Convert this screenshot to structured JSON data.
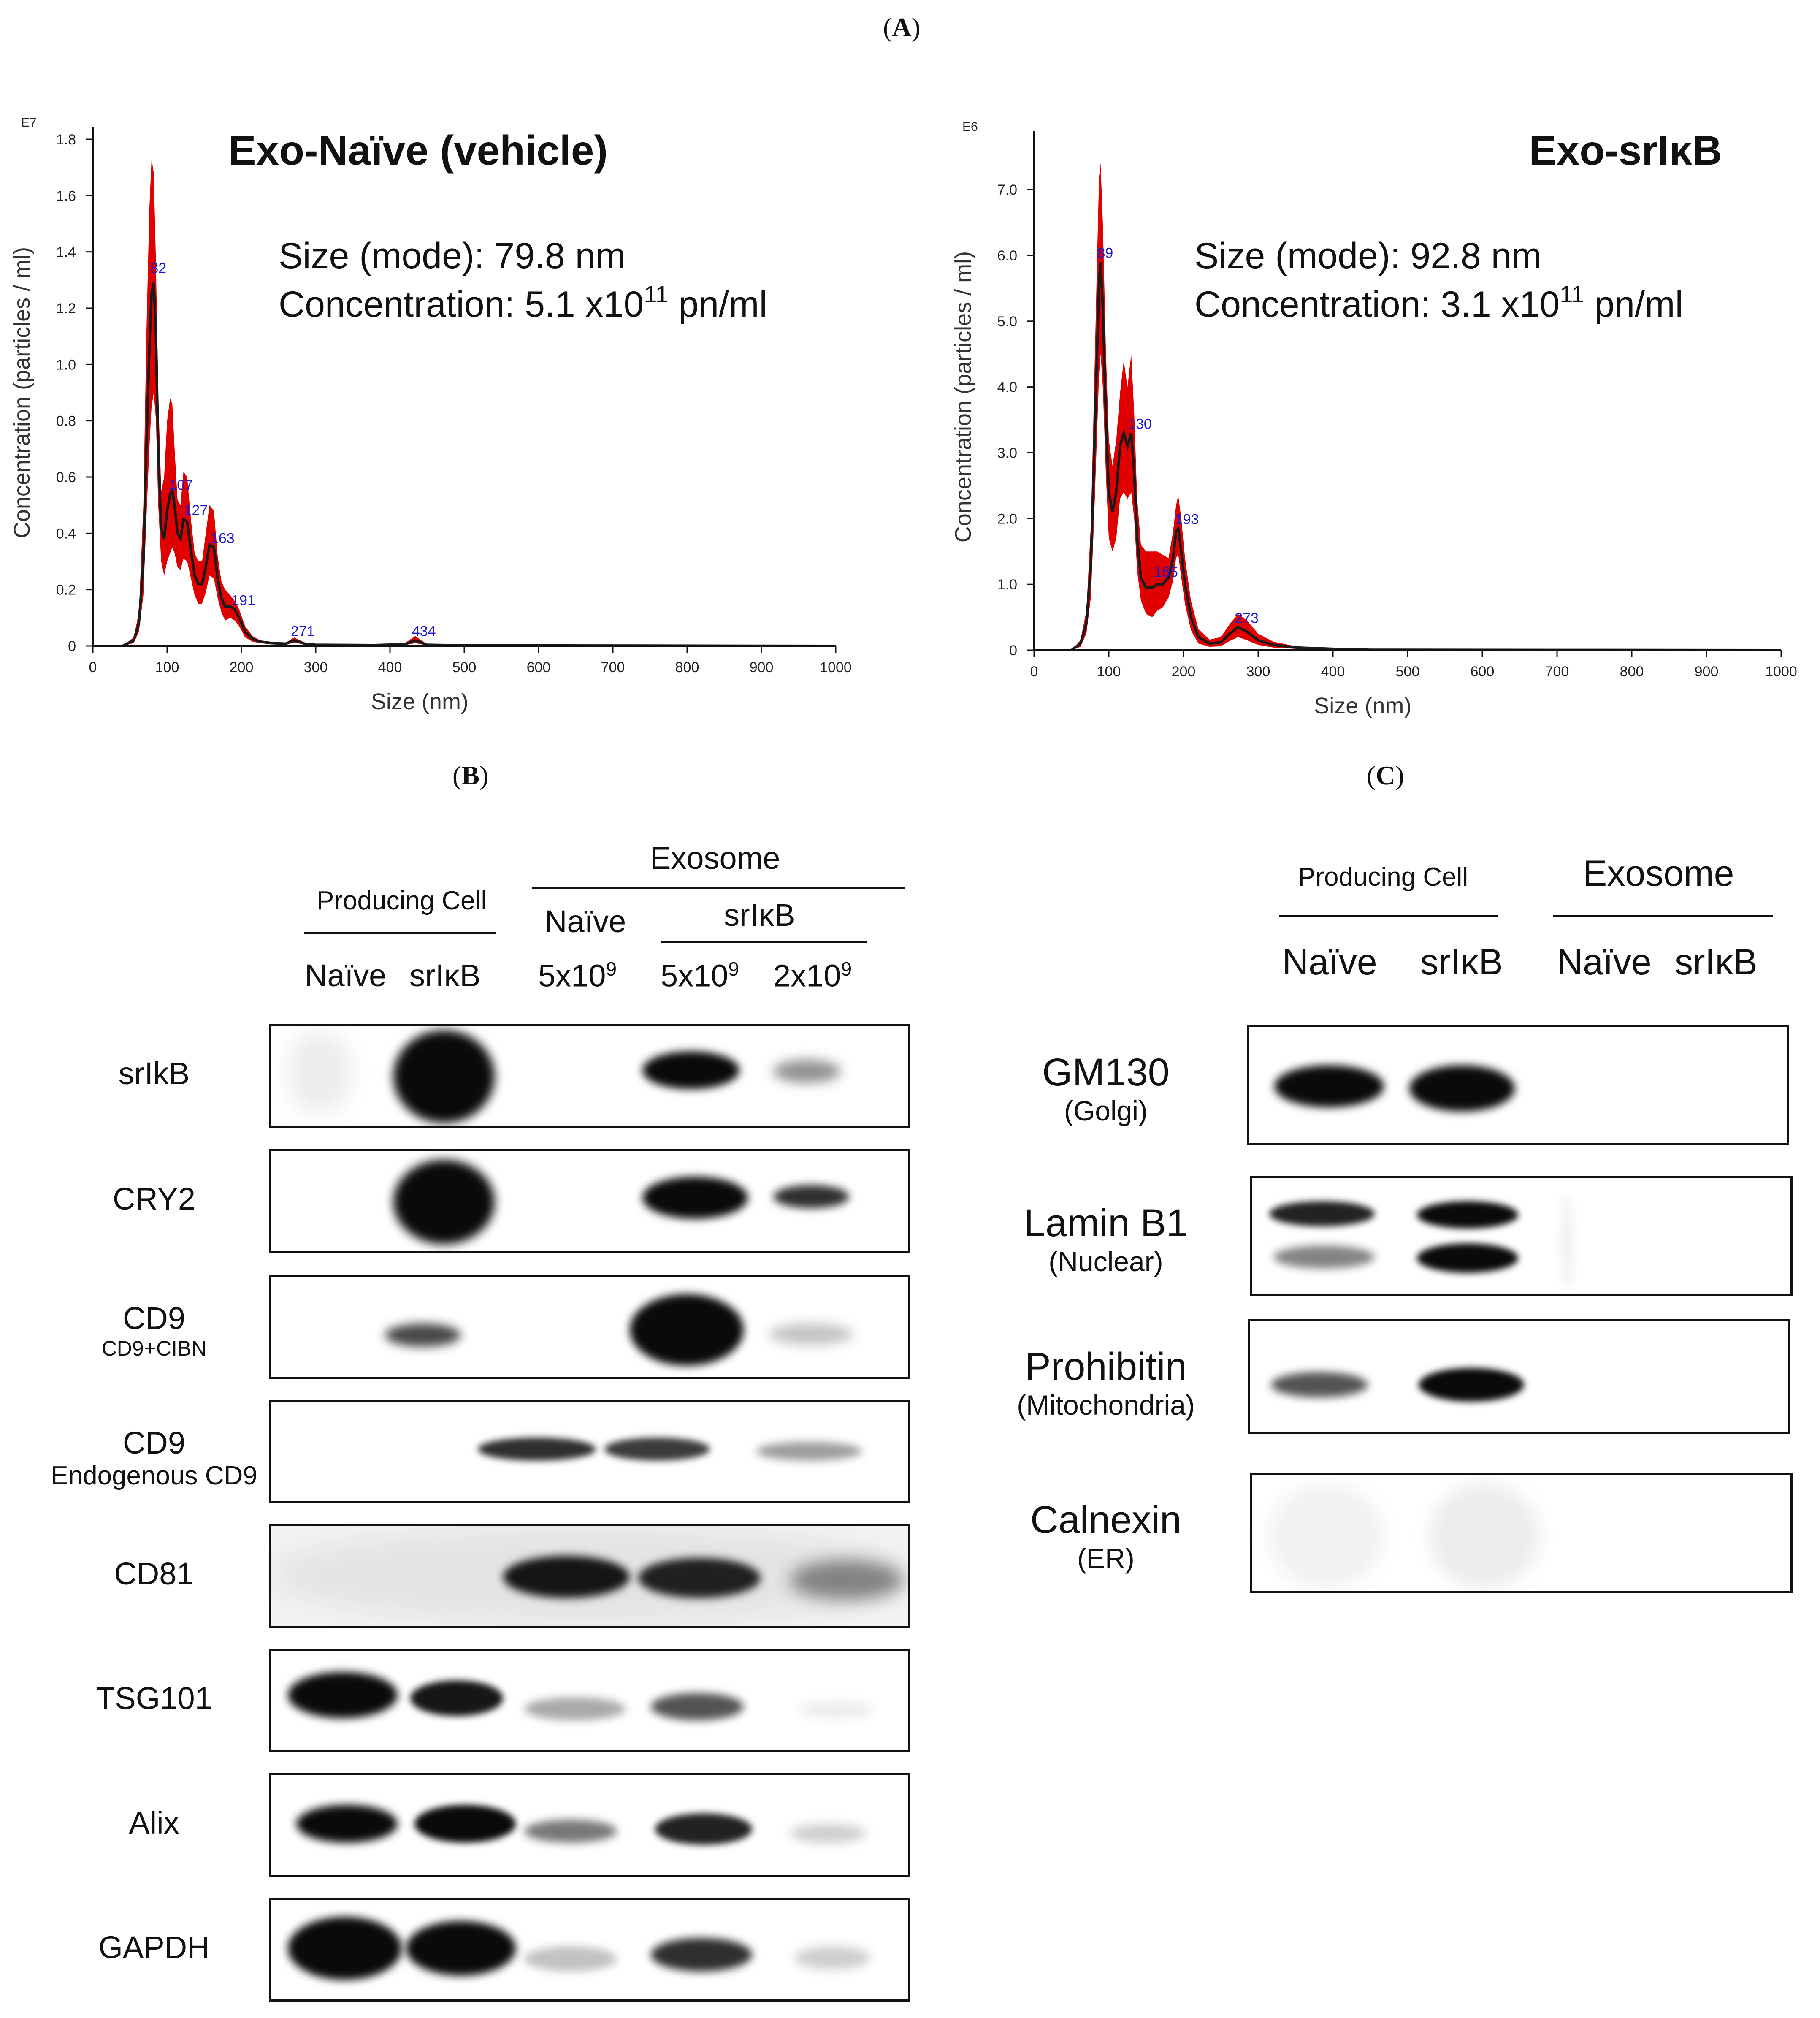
{
  "panels": {
    "a": "A",
    "b": "B",
    "c": "C"
  },
  "panel_a": {
    "chart_data": [
      {
        "type": "area",
        "title": "Exo-Naïve (vehicle)",
        "annotation_lines": [
          "Size (mode): 79.8 nm",
          "Concentration: 5.1 x10",
          "11",
          " pn/ml"
        ],
        "exponent_label": "E7",
        "xlabel": "Size (nm)",
        "ylabel": "Concentration (particles / ml)",
        "xlim": [
          0,
          1000
        ],
        "ylim": [
          0,
          1.8
        ],
        "xticks": [
          0,
          100,
          200,
          300,
          400,
          500,
          600,
          700,
          800,
          900,
          1000
        ],
        "yticks": [
          "0",
          "0.2",
          "0.4",
          "0.6",
          "0.8",
          "1.0",
          "1.2",
          "1.4",
          "1.6",
          "1.8"
        ],
        "peak_labels": [
          {
            "text": "82",
            "x": 82,
            "y": 1.31
          },
          {
            "text": "107",
            "x": 107,
            "y": 0.54
          },
          {
            "text": "127",
            "x": 127,
            "y": 0.45
          },
          {
            "text": "163",
            "x": 163,
            "y": 0.35
          },
          {
            "text": "191",
            "x": 191,
            "y": 0.13
          },
          {
            "text": "271",
            "x": 271,
            "y": 0.02
          },
          {
            "text": "434",
            "x": 434,
            "y": 0.02
          }
        ],
        "series": [
          {
            "x": [
              0,
              40,
              55,
              62,
              68,
              72,
              76,
              79,
              82,
              85,
              88,
              92,
              96,
              100,
              104,
              107,
              110,
              114,
              118,
              122,
              127,
              132,
              137,
              142,
              147,
              152,
              157,
              163,
              168,
              173,
              178,
              185,
              191,
              197,
              205,
              215,
              225,
              240,
              260,
              271,
              285,
              300,
              380,
              420,
              434,
              450,
              500,
              1000
            ],
            "y": [
              0,
              0,
              0.02,
              0.08,
              0.3,
              0.7,
              1.05,
              1.25,
              1.29,
              1.1,
              0.7,
              0.42,
              0.38,
              0.48,
              0.54,
              0.55,
              0.5,
              0.4,
              0.38,
              0.45,
              0.44,
              0.34,
              0.25,
              0.22,
              0.22,
              0.28,
              0.36,
              0.35,
              0.24,
              0.17,
              0.14,
              0.14,
              0.13,
              0.1,
              0.05,
              0.025,
              0.015,
              0.01,
              0.008,
              0.02,
              0.008,
              0.004,
              0.003,
              0.006,
              0.02,
              0.004,
              0.002,
              0
            ]
          },
          {
            "name": "upper",
            "x": [
              0,
              40,
              55,
              62,
              68,
              72,
              76,
              79,
              82,
              85,
              88,
              92,
              96,
              100,
              104,
              107,
              110,
              114,
              118,
              122,
              127,
              132,
              137,
              142,
              147,
              152,
              157,
              163,
              168,
              173,
              178,
              185,
              191,
              197,
              205,
              215,
              225,
              240,
              260,
              271,
              285,
              300,
              380,
              420,
              434,
              450,
              500,
              1000
            ],
            "y": [
              0,
              0,
              0.03,
              0.12,
              0.5,
              1.1,
              1.55,
              1.73,
              1.68,
              1.35,
              0.9,
              0.55,
              0.6,
              0.8,
              0.88,
              0.86,
              0.7,
              0.52,
              0.5,
              0.62,
              0.6,
              0.45,
              0.33,
              0.3,
              0.3,
              0.4,
              0.5,
              0.48,
              0.32,
              0.23,
              0.2,
              0.18,
              0.16,
              0.13,
              0.07,
              0.035,
              0.02,
              0.015,
              0.012,
              0.03,
              0.012,
              0.006,
              0.004,
              0.01,
              0.035,
              0.006,
              0.003,
              0
            ]
          },
          {
            "name": "lower",
            "x": [
              0,
              40,
              55,
              62,
              68,
              72,
              76,
              79,
              82,
              85,
              88,
              92,
              96,
              100,
              104,
              107,
              110,
              114,
              118,
              122,
              127,
              132,
              137,
              142,
              147,
              152,
              157,
              163,
              168,
              173,
              178,
              185,
              191,
              197,
              205,
              215,
              225,
              240,
              260,
              271,
              285,
              300,
              380,
              420,
              434,
              450,
              500,
              1000
            ],
            "y": [
              0,
              0,
              0.01,
              0.05,
              0.18,
              0.45,
              0.7,
              0.85,
              0.9,
              0.8,
              0.5,
              0.3,
              0.25,
              0.3,
              0.33,
              0.35,
              0.33,
              0.28,
              0.27,
              0.31,
              0.3,
              0.24,
              0.18,
              0.15,
              0.15,
              0.19,
              0.25,
              0.24,
              0.17,
              0.12,
              0.09,
              0.1,
              0.09,
              0.07,
              0.03,
              0.015,
              0.01,
              0.006,
              0.005,
              0.012,
              0.005,
              0.002,
              0.002,
              0.003,
              0.01,
              0.002,
              0.001,
              0
            ]
          }
        ]
      },
      {
        "type": "area",
        "title": "Exo-srIκB",
        "annotation_lines": [
          "Size (mode): 92.8 nm",
          "Concentration: 3.1 x10",
          "11",
          " pn/ml"
        ],
        "exponent_label": "E6",
        "xlabel": "Size (nm)",
        "ylabel": "Concentration (particles / ml)",
        "xlim": [
          0,
          1000
        ],
        "ylim": [
          0,
          7.7
        ],
        "xticks": [
          0,
          100,
          200,
          300,
          400,
          500,
          600,
          700,
          800,
          900,
          1000
        ],
        "yticks": [
          "0",
          "1.0",
          "2.0",
          "3.0",
          "4.0",
          "5.0",
          "6.0",
          "7.0"
        ],
        "ytick_values": [
          0,
          1,
          2,
          3,
          4,
          5,
          6,
          7
        ],
        "peak_labels": [
          {
            "text": "89",
            "x": 89,
            "y": 5.9
          },
          {
            "text": "130",
            "x": 130,
            "y": 3.3
          },
          {
            "text": "165",
            "x": 165,
            "y": 1.05
          },
          {
            "text": "193",
            "x": 193,
            "y": 1.85
          },
          {
            "text": "273",
            "x": 273,
            "y": 0.35
          }
        ],
        "series": [
          {
            "x": [
              0,
              50,
              62,
              70,
              76,
              80,
              84,
              87,
              89,
              92,
              96,
              100,
              105,
              110,
              115,
              120,
              125,
              130,
              134,
              138,
              143,
              150,
              158,
              165,
              172,
              180,
              186,
              190,
              193,
              197,
              202,
              210,
              220,
              235,
              250,
              262,
              273,
              285,
              300,
              320,
              350,
              400,
              450,
              1000
            ],
            "y": [
              0,
              0,
              0.1,
              0.4,
              1.3,
              2.8,
              4.4,
              5.6,
              5.9,
              5.2,
              3.6,
              2.4,
              2.1,
              2.4,
              3.1,
              3.3,
              3.1,
              3.3,
              2.7,
              1.7,
              1.1,
              0.95,
              0.95,
              1.0,
              1.0,
              1.1,
              1.4,
              1.8,
              1.85,
              1.5,
              1.0,
              0.5,
              0.2,
              0.1,
              0.12,
              0.25,
              0.35,
              0.28,
              0.15,
              0.08,
              0.04,
              0.02,
              0.005,
              0
            ]
          },
          {
            "name": "upper",
            "x": [
              0,
              50,
              62,
              70,
              76,
              80,
              84,
              87,
              89,
              92,
              96,
              100,
              105,
              110,
              115,
              120,
              125,
              130,
              134,
              138,
              143,
              150,
              158,
              165,
              172,
              180,
              186,
              190,
              193,
              197,
              202,
              210,
              220,
              235,
              250,
              262,
              273,
              285,
              300,
              320,
              350,
              400,
              450,
              1000
            ],
            "y": [
              0,
              0,
              0.15,
              0.6,
              1.9,
              3.8,
              5.8,
              7.2,
              7.4,
              6.5,
              4.6,
              3.2,
              2.8,
              3.2,
              3.9,
              4.4,
              4.0,
              4.5,
              3.6,
              2.3,
              1.6,
              1.5,
              1.5,
              1.5,
              1.45,
              1.4,
              1.8,
              2.2,
              2.35,
              2.0,
              1.4,
              0.75,
              0.32,
              0.16,
              0.2,
              0.4,
              0.55,
              0.45,
              0.25,
              0.13,
              0.06,
              0.03,
              0.008,
              0
            ]
          },
          {
            "name": "lower",
            "x": [
              0,
              50,
              62,
              70,
              76,
              80,
              84,
              87,
              89,
              92,
              96,
              100,
              105,
              110,
              115,
              120,
              125,
              130,
              134,
              138,
              143,
              150,
              158,
              165,
              172,
              180,
              186,
              190,
              193,
              197,
              202,
              210,
              220,
              235,
              250,
              262,
              273,
              285,
              300,
              320,
              350,
              400,
              450,
              1000
            ],
            "y": [
              0,
              0,
              0.05,
              0.25,
              0.8,
              1.9,
              3.2,
              4.2,
              4.5,
              4.0,
              2.7,
              1.7,
              1.5,
              1.7,
              2.3,
              2.4,
              2.3,
              2.4,
              2.0,
              1.2,
              0.75,
              0.55,
              0.5,
              0.6,
              0.65,
              0.8,
              1.05,
              1.4,
              1.45,
              1.1,
              0.7,
              0.3,
              0.1,
              0.05,
              0.06,
              0.14,
              0.2,
              0.15,
              0.08,
              0.04,
              0.02,
              0.01,
              0.002,
              0
            ]
          }
        ]
      }
    ]
  },
  "panel_b": {
    "header": {
      "producing_cell": "Producing Cell",
      "exosome": "Exosome",
      "naive_group": "Naïve",
      "srikb_group": "srIκB",
      "lanes": [
        "Naïve",
        "srIκB",
        "5x10",
        "5x10",
        "2x10"
      ],
      "lane_exp": [
        "",
        "",
        "9",
        "9",
        "9"
      ]
    },
    "rows": [
      {
        "label": "srIkB",
        "sub": ""
      },
      {
        "label": "CRY2",
        "sub": ""
      },
      {
        "label": "CD9",
        "sub": "CD9+CIBN"
      },
      {
        "label": "CD9",
        "sub": "Endogenous CD9"
      },
      {
        "label": "CD81",
        "sub": ""
      },
      {
        "label": "TSG101",
        "sub": ""
      },
      {
        "label": "Alix",
        "sub": ""
      },
      {
        "label": "GAPDH",
        "sub": ""
      }
    ]
  },
  "panel_c": {
    "header": {
      "producing_cell": "Producing Cell",
      "exosome": "Exosome",
      "lanes": [
        "Naïve",
        "srIκB",
        "Naïve",
        "srIκB"
      ]
    },
    "rows": [
      {
        "label": "GM130",
        "sub": "(Golgi)"
      },
      {
        "label": "Lamin B1",
        "sub": "(Nuclear)"
      },
      {
        "label": "Prohibitin",
        "sub": "(Mitochondria)"
      },
      {
        "label": "Calnexin",
        "sub": "(ER)"
      }
    ]
  },
  "colors": {
    "band_fill": "#e00000",
    "mean_line": "#1a1a1a",
    "peak_label": "#1a1acc",
    "band": "#0a0a0a"
  }
}
